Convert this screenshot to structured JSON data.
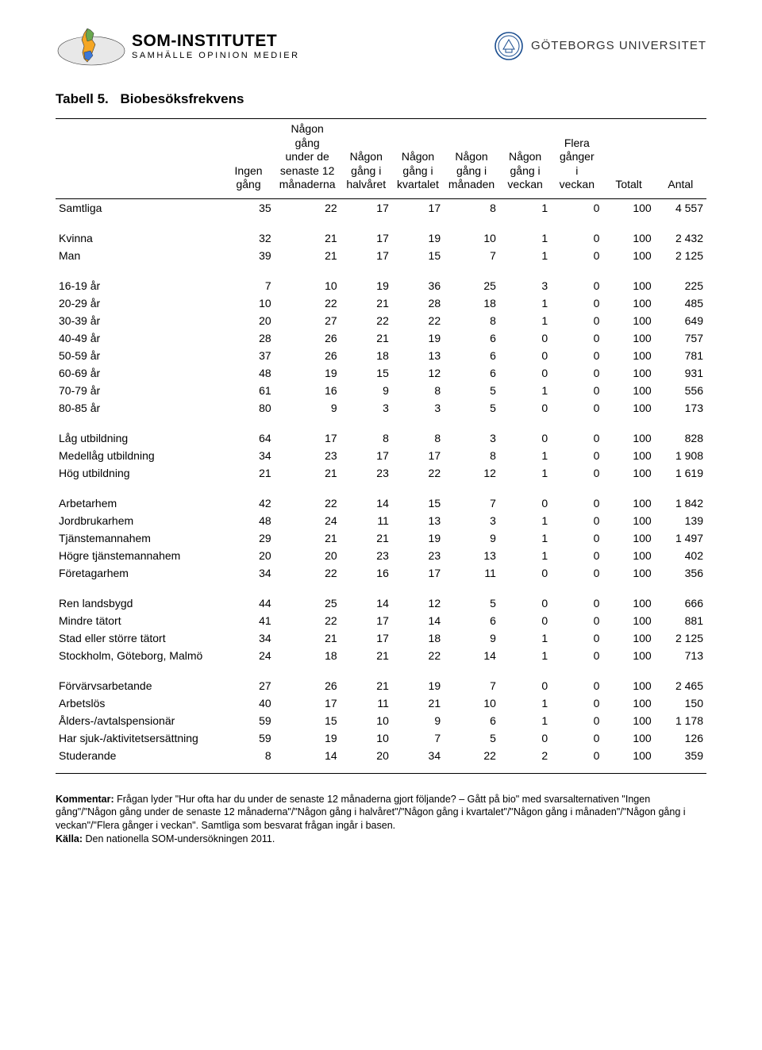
{
  "logos": {
    "som_title": "SOM-INSTITUTET",
    "som_sub": "SAMHÄLLE  OPINION  MEDIER",
    "gu_text": "GÖTEBORGS UNIVERSITET"
  },
  "title": {
    "tabell": "Tabell 5.",
    "name": "Biobesöksfrekvens"
  },
  "columns": [
    "",
    "Ingen gång",
    "Någon gång under de senaste 12 månaderna",
    "Någon gång i halvåret",
    "Någon gång i kvartalet",
    "Någon gång i månaden",
    "Någon gång i veckan",
    "Flera gånger i veckan",
    "Totalt",
    "Antal"
  ],
  "groups": [
    [
      [
        "Samtliga",
        35,
        22,
        17,
        17,
        8,
        1,
        0,
        100,
        "4 557"
      ]
    ],
    [
      [
        "Kvinna",
        32,
        21,
        17,
        19,
        10,
        1,
        0,
        100,
        "2 432"
      ],
      [
        "Man",
        39,
        21,
        17,
        15,
        7,
        1,
        0,
        100,
        "2 125"
      ]
    ],
    [
      [
        "16-19 år",
        7,
        10,
        19,
        36,
        25,
        3,
        0,
        100,
        "225"
      ],
      [
        "20-29 år",
        10,
        22,
        21,
        28,
        18,
        1,
        0,
        100,
        "485"
      ],
      [
        "30-39 år",
        20,
        27,
        22,
        22,
        8,
        1,
        0,
        100,
        "649"
      ],
      [
        "40-49 år",
        28,
        26,
        21,
        19,
        6,
        0,
        0,
        100,
        "757"
      ],
      [
        "50-59 år",
        37,
        26,
        18,
        13,
        6,
        0,
        0,
        100,
        "781"
      ],
      [
        "60-69 år",
        48,
        19,
        15,
        12,
        6,
        0,
        0,
        100,
        "931"
      ],
      [
        "70-79 år",
        61,
        16,
        9,
        8,
        5,
        1,
        0,
        100,
        "556"
      ],
      [
        "80-85 år",
        80,
        9,
        3,
        3,
        5,
        0,
        0,
        100,
        "173"
      ]
    ],
    [
      [
        "Låg utbildning",
        64,
        17,
        8,
        8,
        3,
        0,
        0,
        100,
        "828"
      ],
      [
        "Medellåg utbildning",
        34,
        23,
        17,
        17,
        8,
        1,
        0,
        100,
        "1 908"
      ],
      [
        "Hög utbildning",
        21,
        21,
        23,
        22,
        12,
        1,
        0,
        100,
        "1 619"
      ]
    ],
    [
      [
        "Arbetarhem",
        42,
        22,
        14,
        15,
        7,
        0,
        0,
        100,
        "1 842"
      ],
      [
        "Jordbrukarhem",
        48,
        24,
        11,
        13,
        3,
        1,
        0,
        100,
        "139"
      ],
      [
        "Tjänstemannahem",
        29,
        21,
        21,
        19,
        9,
        1,
        0,
        100,
        "1 497"
      ],
      [
        "Högre tjänstemannahem",
        20,
        20,
        23,
        23,
        13,
        1,
        0,
        100,
        "402"
      ],
      [
        "Företagarhem",
        34,
        22,
        16,
        17,
        11,
        0,
        0,
        100,
        "356"
      ]
    ],
    [
      [
        "Ren landsbygd",
        44,
        25,
        14,
        12,
        5,
        0,
        0,
        100,
        "666"
      ],
      [
        "Mindre tätort",
        41,
        22,
        17,
        14,
        6,
        0,
        0,
        100,
        "881"
      ],
      [
        "Stad eller större tätort",
        34,
        21,
        17,
        18,
        9,
        1,
        0,
        100,
        "2 125"
      ],
      [
        "Stockholm, Göteborg, Malmö",
        24,
        18,
        21,
        22,
        14,
        1,
        0,
        100,
        "713"
      ]
    ],
    [
      [
        "Förvärvsarbetande",
        27,
        26,
        21,
        19,
        7,
        0,
        0,
        100,
        "2 465"
      ],
      [
        "Arbetslös",
        40,
        17,
        11,
        21,
        10,
        1,
        0,
        100,
        "150"
      ],
      [
        "Ålders-/avtalspensionär",
        59,
        15,
        10,
        9,
        6,
        1,
        0,
        100,
        "1 178"
      ],
      [
        "Har sjuk-/aktivitetsersättning",
        59,
        19,
        10,
        7,
        5,
        0,
        0,
        100,
        "126"
      ],
      [
        "Studerande",
        8,
        14,
        20,
        34,
        22,
        2,
        0,
        100,
        "359"
      ]
    ]
  ],
  "footnote": {
    "kommentar_label": "Kommentar:",
    "kommentar_text": " Frågan lyder \"Hur ofta har du under de senaste 12 månaderna gjort följande? – Gått på bio\" med svarsalternativen \"Ingen gång\"/\"Någon gång under de senaste 12 månaderna\"/\"Någon gång i halvåret\"/\"Någon gång i kvartalet\"/\"Någon gång i månaden\"/\"Någon gång i veckan\"/\"Flera gånger i veckan\". Samtliga som besvarat frågan ingår i basen.",
    "kalla_label": "Källa:",
    "kalla_text": " Den nationella SOM-undersökningen 2011."
  },
  "style": {
    "font_size_body": 14,
    "font_size_title": 17,
    "font_size_footnote": 12.5,
    "rule_color": "#000000",
    "background_color": "#ffffff",
    "text_color": "#000000"
  }
}
